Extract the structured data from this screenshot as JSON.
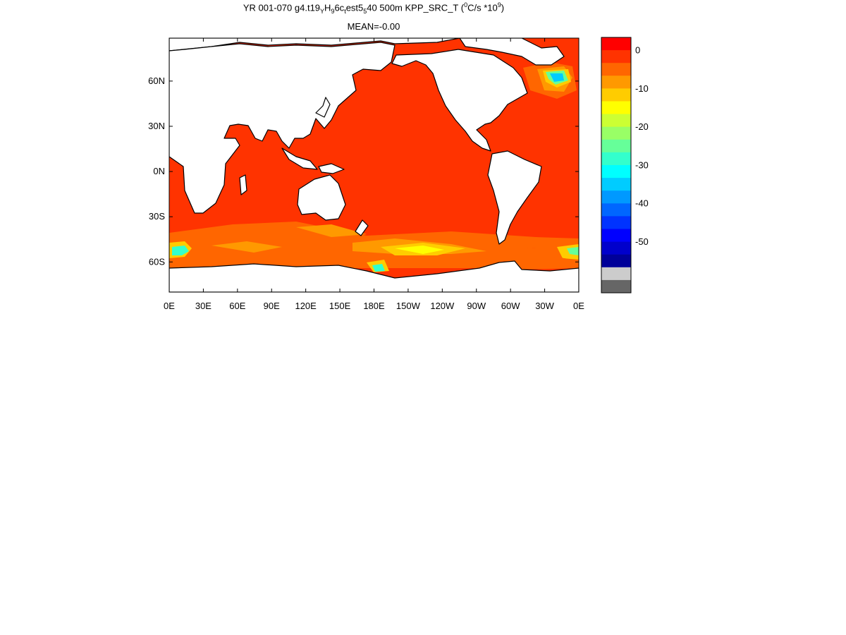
{
  "title": {
    "prefix": "YR 001-070 g4.t19",
    "s1": "Y",
    "mid1": "H",
    "s2": "9",
    "mid2": "6c",
    "s3": "t",
    "mid3": "est5",
    "s4": "5",
    "mid4": "40 500m KPP_SRC_T (",
    "sup1": "0",
    "mid5": "C/s *10",
    "sup2": "9",
    "suffix": ")"
  },
  "subtitle": "MEAN=-0.00",
  "x_ticks": [
    "0E",
    "30E",
    "60E",
    "90E",
    "120E",
    "150E",
    "180E",
    "150W",
    "120W",
    "90W",
    "60W",
    "30W",
    "0E"
  ],
  "y_ticks": [
    "60N",
    "30N",
    "0N",
    "30S",
    "60S"
  ],
  "colorbar": {
    "labels": [
      "0",
      "-10",
      "-20",
      "-30",
      "-40",
      "-50"
    ],
    "colors": [
      "#ff0000",
      "#ff3300",
      "#ff6600",
      "#ff9900",
      "#ffcc00",
      "#ffff00",
      "#ccff33",
      "#99ff66",
      "#66ff99",
      "#33ffcc",
      "#00ffff",
      "#00ccff",
      "#0099ff",
      "#0066ff",
      "#0033ff",
      "#0000ff",
      "#0000cc",
      "#000099",
      "#cccccc",
      "#666666"
    ]
  },
  "colors": {
    "ocean": "#ff3300",
    "land": "#ffffff",
    "coast": "#000000"
  }
}
